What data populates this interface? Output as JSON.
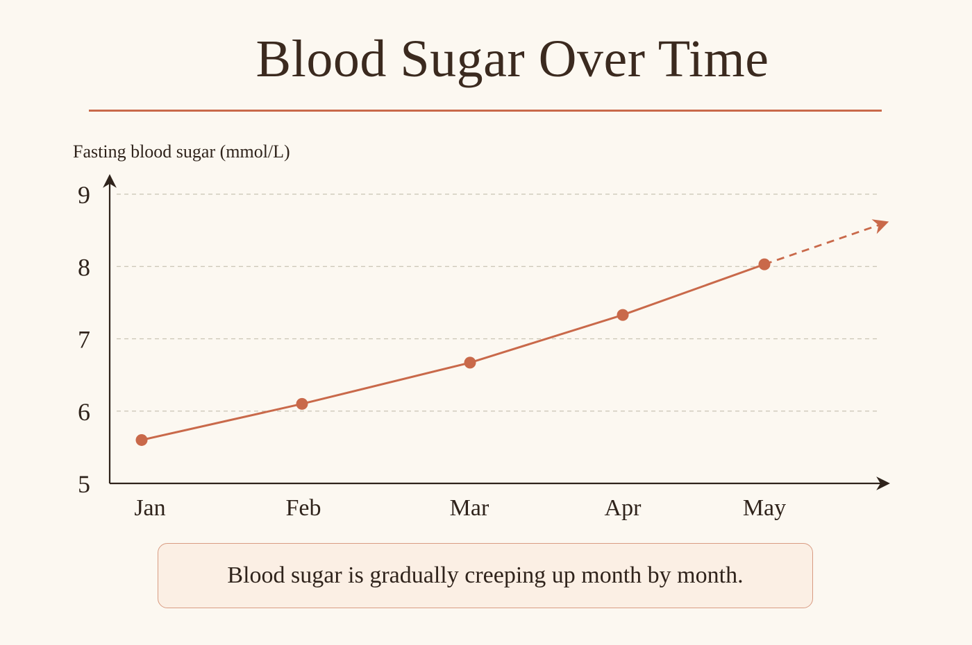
{
  "title": "Blood Sugar Over Time",
  "caption": "Blood sugar is gradually creeping up month by month.",
  "colors": {
    "line": "#c9694a",
    "grid": "#c9c4b4",
    "axis": "#2f231b",
    "background": "#fcf8f1"
  },
  "chart_data": {
    "type": "line",
    "title": "Blood Sugar Over Time",
    "xlabel": "",
    "ylabel": "Fasting blood sugar (mmol/L)",
    "categories": [
      "Jan",
      "Feb",
      "Mar",
      "Apr",
      "May"
    ],
    "series": [
      {
        "values": [
          5.6,
          6.1,
          6.67,
          7.33,
          8.03
        ]
      }
    ],
    "ylim": [
      5,
      9
    ],
    "yticks": [
      5,
      6,
      7,
      8,
      9
    ],
    "grid": "horizontal dashed",
    "trend_arrow": "dashed upward continuation after May"
  }
}
